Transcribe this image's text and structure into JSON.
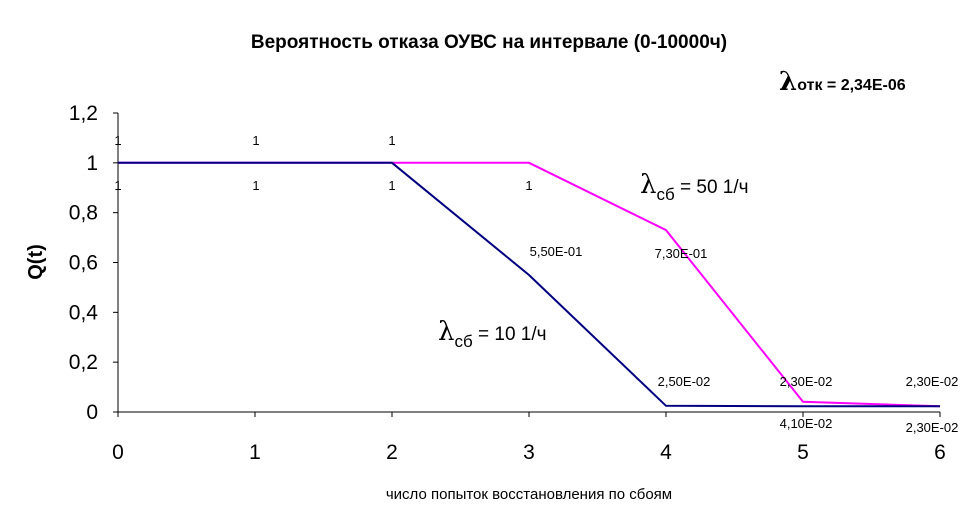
{
  "chart_data": {
    "type": "line",
    "title": "Вероятность отказа ОУВС на интервале (0-10000ч)",
    "lambda_top": {
      "symbol": "λ",
      "sub": "отк",
      "value": " = 2,34Е-06"
    },
    "xlabel": "число попыток восстановления по сбоям",
    "ylabel": "Q(t)",
    "xlim": [
      0,
      6
    ],
    "ylim": [
      0,
      1.2
    ],
    "x_ticks": [
      "0",
      "1",
      "2",
      "3",
      "4",
      "5",
      "6"
    ],
    "y_ticks": [
      "0",
      "0,2",
      "0,4",
      "0,6",
      "0,8",
      "1",
      "1,2"
    ],
    "colors": {
      "series1": "#ff00ff",
      "series2": "#000080",
      "axis": "#000000"
    },
    "series": [
      {
        "name": "λсб = 50 1/ч",
        "label": {
          "symbol": "λ",
          "sub": "сб",
          "value": " = 50 1/ч"
        },
        "color": "#ff00ff",
        "x": [
          0,
          1,
          2,
          3,
          4,
          5,
          6
        ],
        "values": [
          1,
          1,
          1,
          1,
          0.73,
          0.041,
          0.023
        ],
        "data_labels": [
          "1",
          "1",
          "1",
          "",
          "7,30Е-01",
          "4,10Е-02",
          "2,30Е-02"
        ]
      },
      {
        "name": "λсб = 10 1/ч",
        "label": {
          "symbol": "λ",
          "sub": "сб",
          "value": " = 10 1/ч"
        },
        "color": "#000080",
        "x": [
          0,
          1,
          2,
          3,
          4,
          5,
          6
        ],
        "values": [
          1,
          1,
          1,
          0.55,
          0.025,
          0.023,
          0.023
        ],
        "data_labels": [
          "1",
          "1",
          "1",
          "5,50Е-01",
          "2,50Е-02",
          "2,30Е-02",
          "2,30Е-02"
        ]
      }
    ],
    "extra_labels": [
      "1"
    ]
  }
}
